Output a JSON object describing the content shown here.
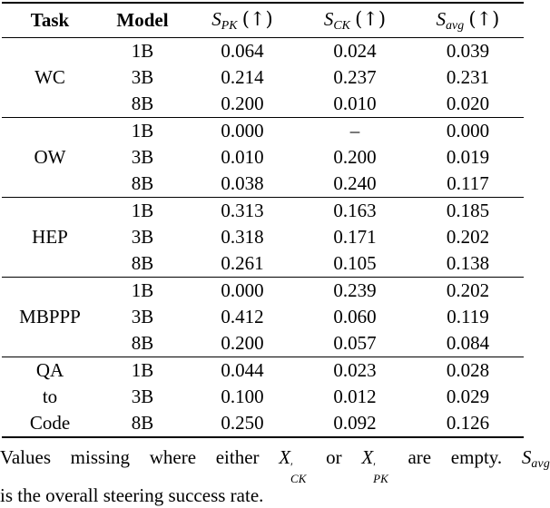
{
  "page": {
    "background": "#ffffff",
    "text_color": "#000000"
  },
  "table": {
    "headers": {
      "task": "Task",
      "model": "Model",
      "metrics": [
        {
          "base": "S",
          "sub": "PK",
          "arrow": "(↑)"
        },
        {
          "base": "S",
          "sub": "CK",
          "arrow": "(↑)"
        },
        {
          "base": "S",
          "sub": "avg",
          "arrow": "(↑)"
        }
      ]
    },
    "groups": [
      {
        "task_lines": [
          "WC"
        ],
        "rows": [
          [
            "1B",
            "0.064",
            "0.024",
            "0.039"
          ],
          [
            "3B",
            "0.214",
            "0.237",
            "0.231"
          ],
          [
            "8B",
            "0.200",
            "0.010",
            "0.020"
          ]
        ]
      },
      {
        "task_lines": [
          "OW"
        ],
        "rows": [
          [
            "1B",
            "0.000",
            "–",
            "0.000"
          ],
          [
            "3B",
            "0.010",
            "0.200",
            "0.019"
          ],
          [
            "8B",
            "0.038",
            "0.240",
            "0.117"
          ]
        ]
      },
      {
        "task_lines": [
          "HEP"
        ],
        "rows": [
          [
            "1B",
            "0.313",
            "0.163",
            "0.185"
          ],
          [
            "3B",
            "0.318",
            "0.171",
            "0.202"
          ],
          [
            "8B",
            "0.261",
            "0.105",
            "0.138"
          ]
        ]
      },
      {
        "task_lines": [
          "MBPPP"
        ],
        "rows": [
          [
            "1B",
            "0.000",
            "0.239",
            "0.202"
          ],
          [
            "3B",
            "0.412",
            "0.060",
            "0.119"
          ],
          [
            "8B",
            "0.200",
            "0.057",
            "0.084"
          ]
        ]
      },
      {
        "task_lines": [
          "QA",
          "to",
          "Code"
        ],
        "rows": [
          [
            "1B",
            "0.044",
            "0.023",
            "0.028"
          ],
          [
            "3B",
            "0.100",
            "0.012",
            "0.029"
          ],
          [
            "8B",
            "0.250",
            "0.092",
            "0.126"
          ]
        ]
      }
    ]
  },
  "caption": {
    "line1": {
      "seg1": "Values missing where either ",
      "var1": {
        "base": "X",
        "prime": "′",
        "sub": "CK"
      },
      "seg2": " or ",
      "var2": {
        "base": "X",
        "prime": "′",
        "sub": "PK"
      },
      "seg3": " are empty. ",
      "var3": {
        "base": "S",
        "sub": "avg"
      }
    },
    "line2": "is the overall steering success rate."
  }
}
